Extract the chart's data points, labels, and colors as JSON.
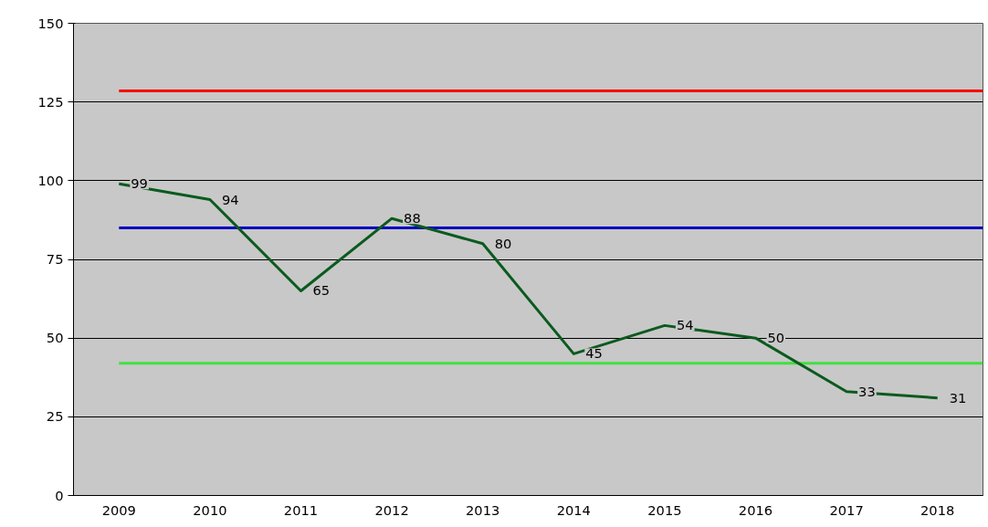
{
  "chart_data": {
    "type": "line",
    "categories": [
      "2009",
      "2010",
      "2011",
      "2012",
      "2013",
      "2014",
      "2015",
      "2016",
      "2017",
      "2018"
    ],
    "series": [
      {
        "color": "#0b5a1e",
        "values": [
          99,
          94,
          65,
          88,
          80,
          45,
          54,
          50,
          33,
          31
        ]
      }
    ],
    "data_labels": true,
    "ylim": [
      0,
      150
    ],
    "yticks": [
      0,
      25,
      50,
      75,
      100,
      125,
      150
    ],
    "grid": "y",
    "marker": "none",
    "line_style": "solid",
    "ref_lines": [
      {
        "axis": "y",
        "value": 128.5,
        "color": "#ff0000"
      },
      {
        "axis": "y",
        "value": 85,
        "color": "#0000c0"
      },
      {
        "axis": "y",
        "value": 42,
        "color": "#40e040"
      }
    ]
  }
}
